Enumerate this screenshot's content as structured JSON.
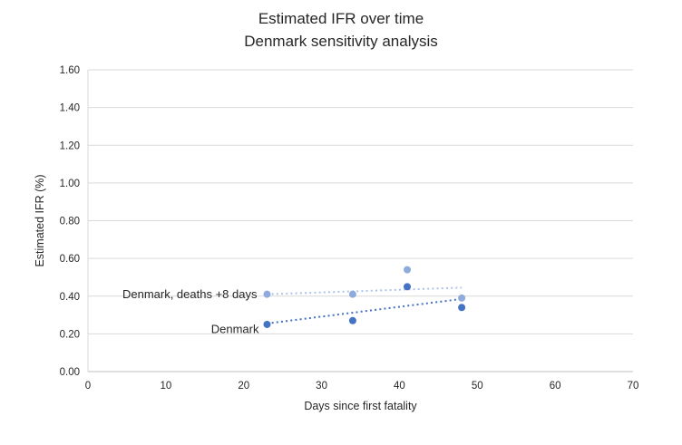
{
  "chart_data": {
    "type": "scatter",
    "title": "Estimated IFR over time",
    "subtitle": "Denmark sensitivity analysis",
    "xlabel": "Days since first fatality",
    "ylabel": "Estimated IFR (%)",
    "xlim": [
      0,
      70
    ],
    "ylim": [
      0,
      1.6
    ],
    "xticks": [
      "0",
      "10",
      "20",
      "30",
      "40",
      "50",
      "60",
      "70"
    ],
    "yticks": [
      "0.00",
      "0.20",
      "0.40",
      "0.60",
      "0.80",
      "1.00",
      "1.20",
      "1.40",
      "1.60"
    ],
    "grid": "horizontal-only",
    "legend_position": "inline-data-labels",
    "colors": {
      "gridline": "#d9d9d9",
      "axis_line": "#bfbfbf",
      "text": "#262626",
      "series_light": "#8faadc",
      "series_light_trend": "#aec3e9",
      "series_dark": "#4472c4",
      "series_dark_trend": "#4472c4"
    },
    "series": [
      {
        "name": "Denmark, deaths +8 days",
        "marker_color": "#8faadc",
        "trend_color": "#aec3e9",
        "points": [
          {
            "x": 23,
            "y": 0.41
          },
          {
            "x": 34,
            "y": 0.41
          },
          {
            "x": 41,
            "y": 0.54
          },
          {
            "x": 48,
            "y": 0.39
          }
        ],
        "trendline": {
          "x1": 23,
          "y1": 0.41,
          "x2": 48,
          "y2": 0.445
        },
        "label": {
          "text": "Denmark, deaths +8 days",
          "anchor_x": 23,
          "anchor_y": 0.41,
          "dx": -11,
          "dy": 0
        }
      },
      {
        "name": "Denmark",
        "marker_color": "#4472c4",
        "trend_color": "#4472c4",
        "points": [
          {
            "x": 23,
            "y": 0.25
          },
          {
            "x": 34,
            "y": 0.27
          },
          {
            "x": 41,
            "y": 0.45
          },
          {
            "x": 48,
            "y": 0.34
          }
        ],
        "trendline": {
          "x1": 23,
          "y1": 0.255,
          "x2": 48,
          "y2": 0.385
        },
        "label": {
          "text": "Denmark",
          "anchor_x": 23,
          "anchor_y": 0.25,
          "dx": -9,
          "dy": 5
        }
      }
    ]
  }
}
